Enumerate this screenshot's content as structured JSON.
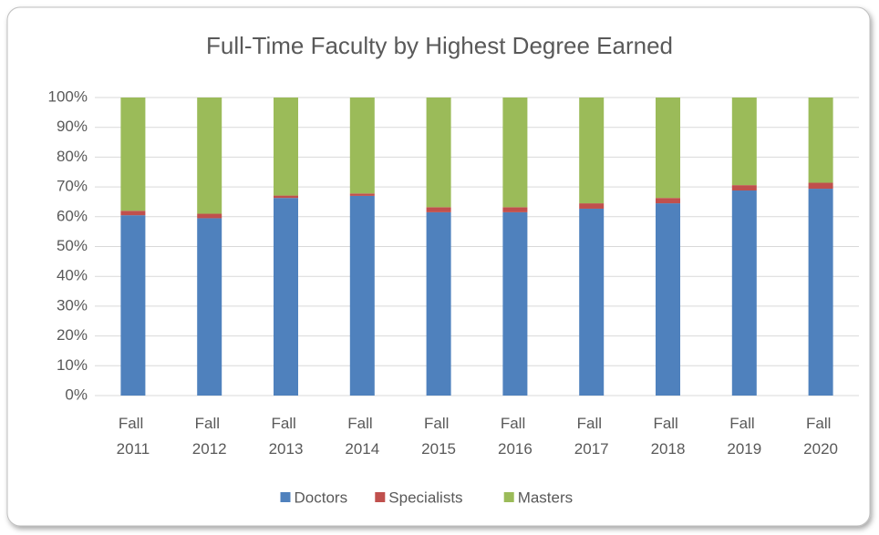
{
  "chart_data": {
    "type": "stacked_bar",
    "title": "Full-Time Faculty by Highest Degree Earned",
    "categories": [
      "Fall 2011",
      "Fall 2012",
      "Fall 2013",
      "Fall 2014",
      "Fall 2015",
      "Fall 2016",
      "Fall 2017",
      "Fall 2018",
      "Fall 2019",
      "Fall 2020"
    ],
    "series": [
      {
        "name": "Doctors",
        "color": "#4f81bd",
        "values": [
          60.5,
          59.5,
          66.3,
          67,
          61.5,
          61.5,
          62.7,
          64.5,
          68.8,
          69.4
        ]
      },
      {
        "name": "Specialists",
        "color": "#c0504d",
        "values": [
          1.5,
          1.5,
          0.8,
          0.8,
          1.7,
          1.7,
          1.8,
          1.8,
          1.8,
          2.0
        ]
      },
      {
        "name": "Masters",
        "color": "#9bbb59",
        "values": [
          38,
          39,
          32.9,
          32.2,
          36.8,
          36.8,
          35.5,
          33.7,
          29.4,
          28.6
        ]
      }
    ],
    "ylim": [
      0,
      100
    ],
    "yticks": [
      {
        "value": 0,
        "label": "0%"
      },
      {
        "value": 10,
        "label": "10%"
      },
      {
        "value": 20,
        "label": "20%"
      },
      {
        "value": 30,
        "label": "30%"
      },
      {
        "value": 40,
        "label": "40%"
      },
      {
        "value": 50,
        "label": "50%"
      },
      {
        "value": 60,
        "label": "60%"
      },
      {
        "value": 70,
        "label": "70%"
      },
      {
        "value": 80,
        "label": "80%"
      },
      {
        "value": 90,
        "label": "90%"
      },
      {
        "value": 100,
        "label": "100%"
      }
    ],
    "grid": true,
    "legend": "bottom"
  }
}
